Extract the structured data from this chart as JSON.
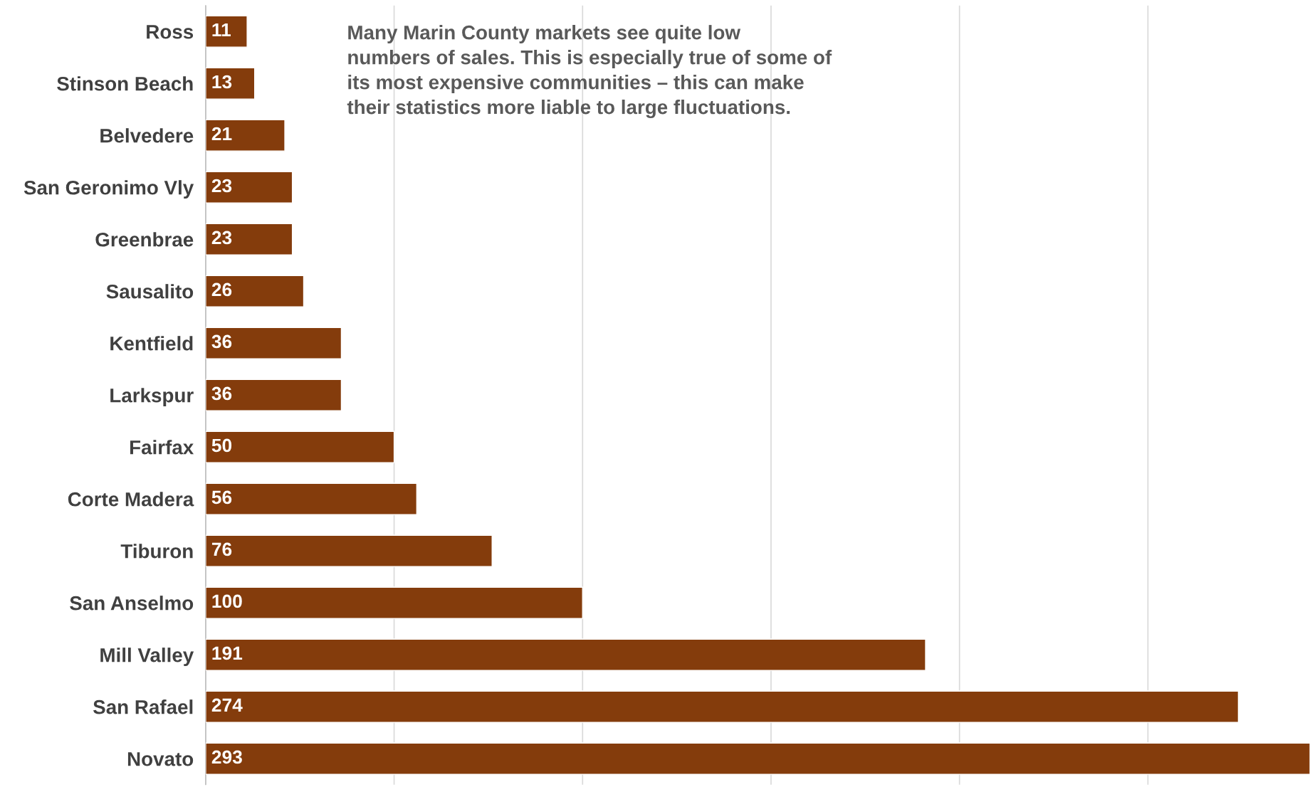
{
  "chart_data": {
    "type": "bar",
    "orientation": "horizontal",
    "categories": [
      "Ross",
      "Stinson Beach",
      "Belvedere",
      "San Geronimo Vly",
      "Greenbrae",
      "Sausalito",
      "Kentfield",
      "Larkspur",
      "Fairfax",
      "Corte Madera",
      "Tiburon",
      "San Anselmo",
      "Mill Valley",
      "San Rafael",
      "Novato"
    ],
    "values": [
      11,
      13,
      21,
      23,
      23,
      26,
      36,
      36,
      50,
      56,
      76,
      100,
      191,
      274,
      293
    ],
    "color": "#843c0c",
    "data_labels": true,
    "xlim": [
      0,
      293
    ],
    "xticks": [
      {
        "value": 0,
        "label": null
      },
      {
        "value": 50,
        "label": null
      },
      {
        "value": 100,
        "label": null
      },
      {
        "value": 150,
        "label": null
      },
      {
        "value": 200,
        "label": null
      },
      {
        "value": 250,
        "label": null
      }
    ],
    "tick_labels": "y",
    "grid": "x",
    "legend": false,
    "annotations": [
      "Many Marin County markets see quite low\nnumbers of sales. This is especially true of some of\nits most expensive communities – this can make\ntheir statistics more liable to large fluctuations."
    ]
  }
}
